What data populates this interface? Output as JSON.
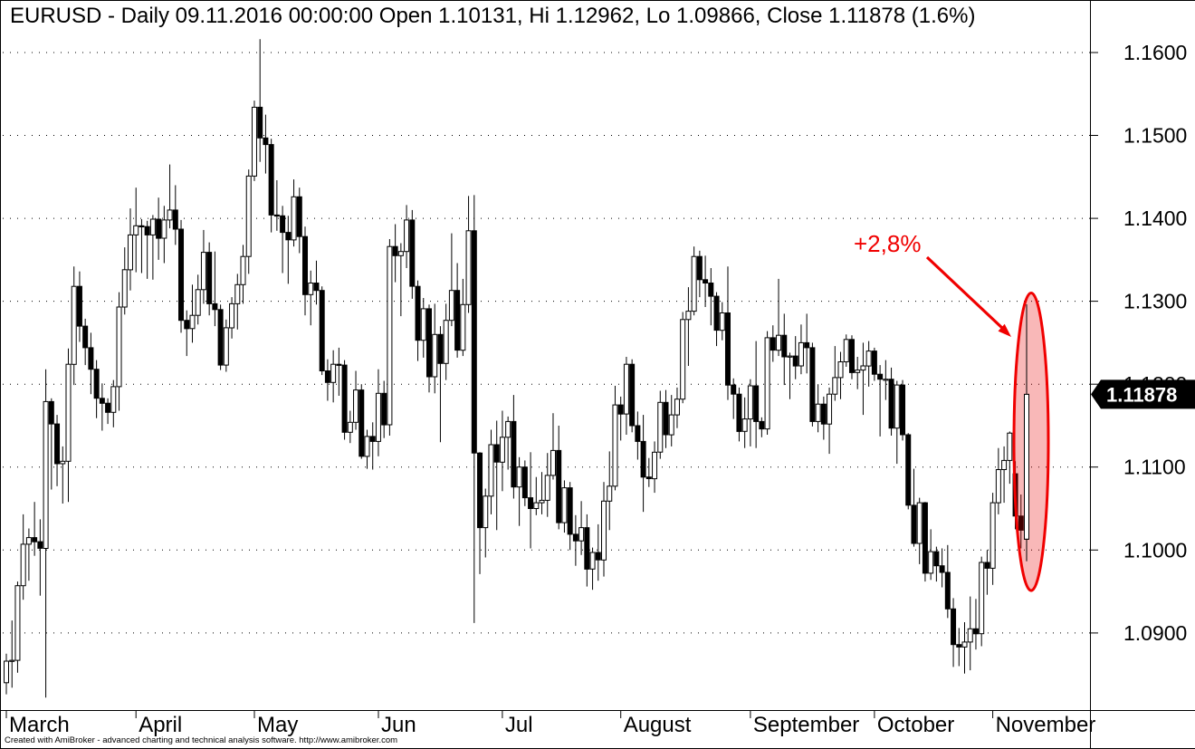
{
  "title": "EURUSD - Daily 09.11.2016 00:00:00 Open 1.10131, Hi 1.12962, Lo 1.09866, Close 1.11878 (1.6%)",
  "footer": "Created with AmiBroker - advanced charting and technical analysis software. http://www.amibroker.com",
  "price_badge": {
    "label": "1.11878",
    "value": 1.11878,
    "bg": "#000000",
    "fg": "#ffffff"
  },
  "annotation": {
    "label": "+2,8%",
    "color": "#f00000",
    "ellipse_fill": "rgba(232,0,0,0.28)",
    "ellipse_top_price": 1.131,
    "ellipse_bottom_price": 1.0951
  },
  "chart_data": {
    "type": "candlestick",
    "symbol": "EURUSD",
    "timeframe": "Daily",
    "period_shown": "2016-03-01 to 2016-11-09",
    "last_bar": {
      "date": "09.11.2016",
      "open": 1.10131,
      "high": 1.12962,
      "low": 1.09866,
      "close": 1.11878,
      "change_pct": "1.6%"
    },
    "ylim": [
      1.0807,
      1.1624
    ],
    "grid": "horizontal-dotted",
    "legend_position": "none",
    "y_gridlines": [
      {
        "label": "1.1600",
        "value": 1.16
      },
      {
        "label": "1.1500",
        "value": 1.15
      },
      {
        "label": "1.1400",
        "value": 1.14
      },
      {
        "label": "1.1300",
        "value": 1.13
      },
      {
        "label": "1.1200",
        "value": 1.12
      },
      {
        "label": "1.1100",
        "value": 1.11
      },
      {
        "label": "1.1000",
        "value": 1.1
      },
      {
        "label": "1.0900",
        "value": 1.09
      }
    ],
    "month_ticks": [
      {
        "label": "March",
        "index": 0
      },
      {
        "label": "April",
        "index": 23
      },
      {
        "label": "May",
        "index": 44
      },
      {
        "label": "Jun",
        "index": 66
      },
      {
        "label": "Jul",
        "index": 88
      },
      {
        "label": "August",
        "index": 109
      },
      {
        "label": "September",
        "index": 132
      },
      {
        "label": "October",
        "index": 154
      },
      {
        "label": "November",
        "index": 175
      }
    ],
    "ohlc": [
      [
        1.084,
        1.0875,
        1.0826,
        1.0866
      ],
      [
        1.0866,
        1.0915,
        1.0834,
        1.0867
      ],
      [
        1.0867,
        1.0962,
        1.0852,
        1.0957
      ],
      [
        1.0957,
        1.1043,
        1.094,
        1.1007
      ],
      [
        1.1007,
        1.1026,
        1.0963,
        1.1015
      ],
      [
        1.1015,
        1.1058,
        1.0993,
        1.101
      ],
      [
        1.101,
        1.1037,
        1.0945,
        1.1002
      ],
      [
        1.1002,
        1.1218,
        1.0822,
        1.1179
      ],
      [
        1.1179,
        1.1183,
        1.1073,
        1.1152
      ],
      [
        1.1152,
        1.1163,
        1.1077,
        1.1104
      ],
      [
        1.1104,
        1.1125,
        1.1056,
        1.1107
      ],
      [
        1.1107,
        1.1243,
        1.1058,
        1.1224
      ],
      [
        1.1224,
        1.1342,
        1.1199,
        1.1318
      ],
      [
        1.1318,
        1.1336,
        1.1251,
        1.127
      ],
      [
        1.127,
        1.1279,
        1.1223,
        1.1244
      ],
      [
        1.1244,
        1.1262,
        1.1188,
        1.1218
      ],
      [
        1.1218,
        1.1229,
        1.1159,
        1.1183
      ],
      [
        1.1183,
        1.1201,
        1.1144,
        1.1177
      ],
      [
        1.1177,
        1.1183,
        1.1152,
        1.1166
      ],
      [
        1.1166,
        1.1205,
        1.1148,
        1.1197
      ],
      [
        1.1197,
        1.1311,
        1.1168,
        1.1293
      ],
      [
        1.1293,
        1.1365,
        1.1284,
        1.1338
      ],
      [
        1.1338,
        1.1412,
        1.1313,
        1.138
      ],
      [
        1.138,
        1.1437,
        1.1335,
        1.1391
      ],
      [
        1.1391,
        1.1399,
        1.1334,
        1.139
      ],
      [
        1.139,
        1.1397,
        1.1327,
        1.138
      ],
      [
        1.138,
        1.1404,
        1.1326,
        1.1399
      ],
      [
        1.1399,
        1.1425,
        1.135,
        1.1376
      ],
      [
        1.1376,
        1.1415,
        1.1346,
        1.1398
      ],
      [
        1.1398,
        1.1465,
        1.1388,
        1.141
      ],
      [
        1.141,
        1.144,
        1.1368,
        1.1387
      ],
      [
        1.1387,
        1.1398,
        1.1262,
        1.1277
      ],
      [
        1.1277,
        1.1289,
        1.1234,
        1.1267
      ],
      [
        1.1267,
        1.132,
        1.125,
        1.1283
      ],
      [
        1.1283,
        1.1332,
        1.1272,
        1.1314
      ],
      [
        1.1314,
        1.1386,
        1.1297,
        1.1359
      ],
      [
        1.1359,
        1.1371,
        1.1283,
        1.1297
      ],
      [
        1.1297,
        1.136,
        1.127,
        1.129
      ],
      [
        1.129,
        1.1296,
        1.1217,
        1.1223
      ],
      [
        1.1223,
        1.1278,
        1.1215,
        1.1268
      ],
      [
        1.1268,
        1.1305,
        1.1255,
        1.1297
      ],
      [
        1.1297,
        1.1333,
        1.1266,
        1.132
      ],
      [
        1.132,
        1.1368,
        1.1297,
        1.1354
      ],
      [
        1.1354,
        1.1459,
        1.1333,
        1.1451
      ],
      [
        1.1451,
        1.1542,
        1.1445,
        1.1534
      ],
      [
        1.1534,
        1.1616,
        1.1468,
        1.1497
      ],
      [
        1.1497,
        1.1525,
        1.1454,
        1.1489
      ],
      [
        1.1489,
        1.1496,
        1.1383,
        1.1404
      ],
      [
        1.1404,
        1.1446,
        1.1385,
        1.1403
      ],
      [
        1.1403,
        1.1415,
        1.1334,
        1.1383
      ],
      [
        1.1383,
        1.1403,
        1.1321,
        1.1374
      ],
      [
        1.1374,
        1.1447,
        1.1366,
        1.1426
      ],
      [
        1.1426,
        1.1437,
        1.1358,
        1.1378
      ],
      [
        1.1378,
        1.139,
        1.1283,
        1.1308
      ],
      [
        1.1308,
        1.1337,
        1.1271,
        1.1322
      ],
      [
        1.1322,
        1.1349,
        1.1296,
        1.1313
      ],
      [
        1.1313,
        1.1318,
        1.1211,
        1.1216
      ],
      [
        1.1216,
        1.123,
        1.118,
        1.1202
      ],
      [
        1.1202,
        1.1241,
        1.1178,
        1.1224
      ],
      [
        1.1224,
        1.1244,
        1.1186,
        1.1223
      ],
      [
        1.1223,
        1.1229,
        1.1133,
        1.1142
      ],
      [
        1.1142,
        1.1168,
        1.1129,
        1.1154
      ],
      [
        1.1154,
        1.1216,
        1.1145,
        1.1193
      ],
      [
        1.1193,
        1.12,
        1.111,
        1.1113
      ],
      [
        1.1113,
        1.1145,
        1.1098,
        1.1137
      ],
      [
        1.1137,
        1.1154,
        1.1097,
        1.1131
      ],
      [
        1.1131,
        1.1218,
        1.1113,
        1.1189
      ],
      [
        1.1189,
        1.1204,
        1.1135,
        1.1151
      ],
      [
        1.1151,
        1.1375,
        1.1138,
        1.1366
      ],
      [
        1.1366,
        1.1393,
        1.1323,
        1.1355
      ],
      [
        1.1355,
        1.137,
        1.1282,
        1.136
      ],
      [
        1.136,
        1.1416,
        1.134,
        1.1398
      ],
      [
        1.1398,
        1.141,
        1.1303,
        1.1318
      ],
      [
        1.1318,
        1.1325,
        1.1228,
        1.1253
      ],
      [
        1.1253,
        1.1304,
        1.1232,
        1.1291
      ],
      [
        1.1291,
        1.1296,
        1.119,
        1.1209
      ],
      [
        1.1209,
        1.1297,
        1.1189,
        1.126
      ],
      [
        1.126,
        1.127,
        1.113,
        1.1225
      ],
      [
        1.1225,
        1.1297,
        1.1205,
        1.1277
      ],
      [
        1.1277,
        1.1382,
        1.127,
        1.1313
      ],
      [
        1.1313,
        1.1346,
        1.1232,
        1.1241
      ],
      [
        1.1241,
        1.1327,
        1.1234,
        1.1296
      ],
      [
        1.1296,
        1.1427,
        1.1286,
        1.1385
      ],
      [
        1.1385,
        1.1428,
        1.0912,
        1.1117
      ],
      [
        1.1117,
        1.1118,
        1.0971,
        1.1027
      ],
      [
        1.1027,
        1.1074,
        1.0991,
        1.1065
      ],
      [
        1.1065,
        1.1145,
        1.1043,
        1.1127
      ],
      [
        1.1127,
        1.1156,
        1.1024,
        1.1106
      ],
      [
        1.1106,
        1.1168,
        1.1071,
        1.1136
      ],
      [
        1.1136,
        1.1161,
        1.1097,
        1.1155
      ],
      [
        1.1155,
        1.1187,
        1.1062,
        1.1076
      ],
      [
        1.1076,
        1.1112,
        1.1029,
        1.11
      ],
      [
        1.11,
        1.1108,
        1.1053,
        1.1063
      ],
      [
        1.1063,
        1.1118,
        1.1002,
        1.105
      ],
      [
        1.105,
        1.1088,
        1.1042,
        1.1057
      ],
      [
        1.1057,
        1.1094,
        1.1043,
        1.106
      ],
      [
        1.106,
        1.1117,
        1.104,
        1.109
      ],
      [
        1.109,
        1.1165,
        1.1085,
        1.112
      ],
      [
        1.112,
        1.115,
        1.1025,
        1.1033
      ],
      [
        1.1033,
        1.1084,
        1.1021,
        1.1075
      ],
      [
        1.1075,
        1.1082,
        1.1,
        1.1019
      ],
      [
        1.1019,
        1.1042,
        1.0981,
        1.1011
      ],
      [
        1.1011,
        1.1059,
        1.0994,
        1.1027
      ],
      [
        1.1027,
        1.1043,
        1.0956,
        1.0977
      ],
      [
        1.0977,
        1.1003,
        1.0952,
        1.0997
      ],
      [
        1.0997,
        1.1031,
        1.0963,
        1.0988
      ],
      [
        1.0988,
        1.1082,
        1.0968,
        1.1059
      ],
      [
        1.1059,
        1.1119,
        1.1024,
        1.1077
      ],
      [
        1.1077,
        1.1198,
        1.1072,
        1.1175
      ],
      [
        1.1175,
        1.1185,
        1.1132,
        1.1164
      ],
      [
        1.1164,
        1.1233,
        1.1139,
        1.1224
      ],
      [
        1.1224,
        1.123,
        1.1142,
        1.115
      ],
      [
        1.115,
        1.1167,
        1.1109,
        1.1131
      ],
      [
        1.1131,
        1.1163,
        1.1046,
        1.1088
      ],
      [
        1.1088,
        1.1111,
        1.1076,
        1.1086
      ],
      [
        1.1086,
        1.1131,
        1.1069,
        1.1118
      ],
      [
        1.1118,
        1.1192,
        1.111,
        1.1178
      ],
      [
        1.1178,
        1.1193,
        1.1123,
        1.1139
      ],
      [
        1.1139,
        1.1187,
        1.1125,
        1.1163
      ],
      [
        1.1163,
        1.1196,
        1.1147,
        1.1182
      ],
      [
        1.1182,
        1.1287,
        1.1177,
        1.1278
      ],
      [
        1.1278,
        1.1317,
        1.1222,
        1.1288
      ],
      [
        1.1288,
        1.1366,
        1.1283,
        1.1354
      ],
      [
        1.1354,
        1.1361,
        1.1305,
        1.1326
      ],
      [
        1.1326,
        1.1355,
        1.1293,
        1.1322
      ],
      [
        1.1322,
        1.134,
        1.1271,
        1.1306
      ],
      [
        1.1306,
        1.1311,
        1.1246,
        1.1265
      ],
      [
        1.1265,
        1.1299,
        1.1253,
        1.1286
      ],
      [
        1.1286,
        1.1342,
        1.1181,
        1.1199
      ],
      [
        1.1199,
        1.1207,
        1.1158,
        1.1188
      ],
      [
        1.1188,
        1.1196,
        1.1131,
        1.1143
      ],
      [
        1.1143,
        1.1184,
        1.1123,
        1.1158
      ],
      [
        1.1158,
        1.1206,
        1.1125,
        1.1198
      ],
      [
        1.1198,
        1.1252,
        1.1123,
        1.1155
      ],
      [
        1.1155,
        1.116,
        1.1136,
        1.1146
      ],
      [
        1.1146,
        1.1264,
        1.1139,
        1.1256
      ],
      [
        1.1256,
        1.1271,
        1.1227,
        1.1241
      ],
      [
        1.1241,
        1.1327,
        1.1234,
        1.1259
      ],
      [
        1.1259,
        1.1285,
        1.1199,
        1.1233
      ],
      [
        1.1233,
        1.1238,
        1.1182,
        1.1234
      ],
      [
        1.1234,
        1.1258,
        1.1206,
        1.1222
      ],
      [
        1.1222,
        1.1272,
        1.1212,
        1.125
      ],
      [
        1.125,
        1.1285,
        1.1213,
        1.1244
      ],
      [
        1.1244,
        1.125,
        1.1149,
        1.1155
      ],
      [
        1.1155,
        1.12,
        1.1142,
        1.1176
      ],
      [
        1.1176,
        1.1185,
        1.1133,
        1.1152
      ],
      [
        1.1152,
        1.1196,
        1.1116,
        1.1188
      ],
      [
        1.1188,
        1.1246,
        1.118,
        1.1208
      ],
      [
        1.1208,
        1.1239,
        1.1182,
        1.1227
      ],
      [
        1.1227,
        1.126,
        1.1221,
        1.1254
      ],
      [
        1.1254,
        1.1259,
        1.1206,
        1.1214
      ],
      [
        1.1214,
        1.1233,
        1.1194,
        1.1217
      ],
      [
        1.1217,
        1.125,
        1.1163,
        1.1222
      ],
      [
        1.1222,
        1.1252,
        1.1197,
        1.124
      ],
      [
        1.124,
        1.1244,
        1.1204,
        1.1212
      ],
      [
        1.1212,
        1.1223,
        1.1137,
        1.1206
      ],
      [
        1.1206,
        1.1229,
        1.1181,
        1.1206
      ],
      [
        1.1206,
        1.122,
        1.1138,
        1.1147
      ],
      [
        1.1147,
        1.1204,
        1.1104,
        1.1199
      ],
      [
        1.1199,
        1.1205,
        1.1132,
        1.1139
      ],
      [
        1.1139,
        1.1141,
        1.1049,
        1.1054
      ],
      [
        1.1054,
        1.1098,
        1.1004,
        1.1008
      ],
      [
        1.1008,
        1.1063,
        1.0983,
        1.1057
      ],
      [
        1.1057,
        1.1058,
        1.0962,
        1.0972
      ],
      [
        1.0972,
        1.1025,
        1.0964,
        1.0998
      ],
      [
        1.0998,
        1.1004,
        1.0962,
        1.0981
      ],
      [
        1.0981,
        1.1002,
        1.0955,
        1.0973
      ],
      [
        1.0973,
        1.1006,
        1.0918,
        1.0929
      ],
      [
        1.0929,
        1.0942,
        1.0859,
        1.0886
      ],
      [
        1.0886,
        1.0906,
        1.086,
        1.0883
      ],
      [
        1.0883,
        1.0913,
        1.0851,
        1.0889
      ],
      [
        1.0889,
        1.0944,
        1.0855,
        1.0905
      ],
      [
        1.0905,
        1.0941,
        1.088,
        1.0899
      ],
      [
        1.0899,
        1.0992,
        1.0884,
        1.0985
      ],
      [
        1.0985,
        1.1,
        1.0946,
        1.0978
      ],
      [
        1.0978,
        1.1069,
        1.0958,
        1.1057
      ],
      [
        1.1057,
        1.1123,
        1.1043,
        1.1097
      ],
      [
        1.1097,
        1.1125,
        1.1057,
        1.1108
      ],
      [
        1.1108,
        1.1143,
        1.108,
        1.1141
      ],
      [
        1.1092,
        1.1107,
        1.1025,
        1.1041
      ],
      [
        1.1041,
        1.1067,
        1.1002,
        1.1024
      ],
      [
        1.10131,
        1.12962,
        1.09866,
        1.11878
      ]
    ]
  }
}
